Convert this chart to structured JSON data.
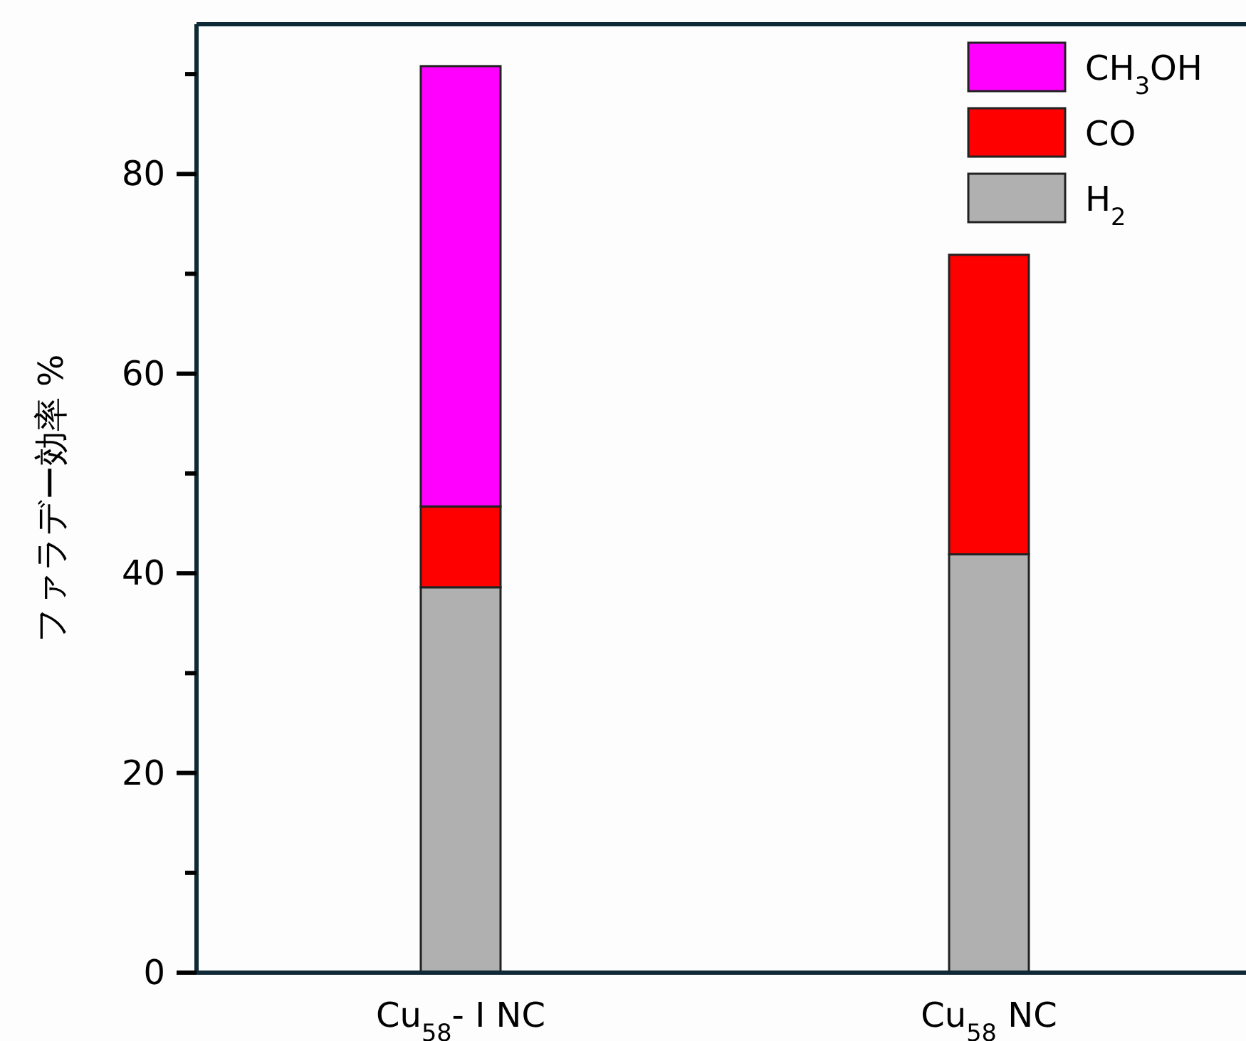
{
  "chart_data": {
    "type": "bar",
    "stacked": true,
    "ylabel": "ファラデー効率 %",
    "categories": [
      "Cu$_{58}$- Ⅰ NC",
      "Cu$_{58}$ NC"
    ],
    "series": [
      {
        "name": "H$_{2}$",
        "color": "#b0b0b0",
        "values": [
          38.6,
          41.9
        ]
      },
      {
        "name": "CO",
        "color": "#ff0000",
        "values": [
          8.1,
          30.0
        ]
      },
      {
        "name": "CH$_{3}$OH",
        "color": "#ff00ff",
        "values": [
          44.1,
          null
        ]
      }
    ],
    "ylim": [
      0,
      95
    ],
    "yticks": [
      0,
      {
        "value": 10,
        "label": null
      },
      20,
      {
        "value": 30,
        "label": null
      },
      40,
      {
        "value": 50,
        "label": null
      },
      60,
      {
        "value": 70,
        "label": null
      },
      80,
      {
        "value": 90,
        "label": null
      }
    ],
    "legend": "top right"
  }
}
